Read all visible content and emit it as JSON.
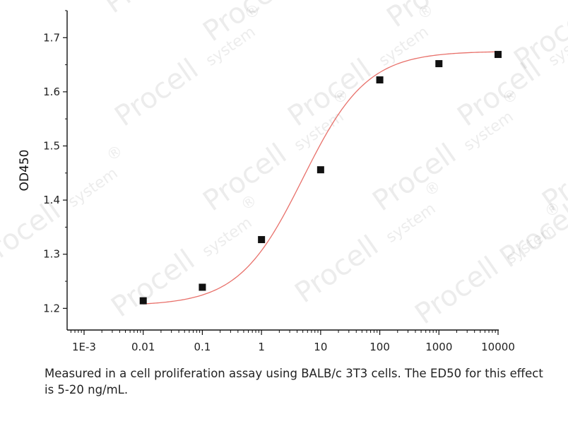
{
  "chart_data": {
    "type": "scatter",
    "title": "",
    "xlabel": "",
    "ylabel": "OD450",
    "x_scale": "log",
    "xlim": [
      0.001,
      10000
    ],
    "ylim": [
      1.16,
      1.75
    ],
    "x_ticks": [
      0.001,
      0.01,
      0.1,
      1,
      10,
      100,
      1000,
      10000
    ],
    "x_tick_labels": [
      "1E-3",
      "0.01",
      "0.1",
      "1",
      "10",
      "100",
      "1000",
      "10000"
    ],
    "y_ticks": [
      1.2,
      1.3,
      1.4,
      1.5,
      1.6,
      1.7
    ],
    "y_tick_labels": [
      "1.2",
      "1.3",
      "1.4",
      "1.5",
      "1.6",
      "1.7"
    ],
    "grid": false,
    "series": [
      {
        "marker": "square",
        "color": "#111111",
        "x": [
          0.01,
          0.1,
          1,
          10,
          100,
          1000,
          10000
        ],
        "y": [
          1.214,
          1.239,
          1.327,
          1.456,
          1.622,
          1.652,
          1.669
        ]
      }
    ],
    "fit_curve": {
      "type": "4PL",
      "color": "#e8706a",
      "bottom": 1.205,
      "top": 1.675,
      "ec50": 5,
      "hill": 0.8,
      "x_range": [
        0.01,
        10000
      ]
    }
  },
  "watermark": {
    "brand": "Procell",
    "suffix": "system",
    "mark": "®"
  },
  "caption": "Measured in a cell proliferation assay using BALB/c 3T3 cells. The ED50 for this effect is 5-20 ng/mL."
}
